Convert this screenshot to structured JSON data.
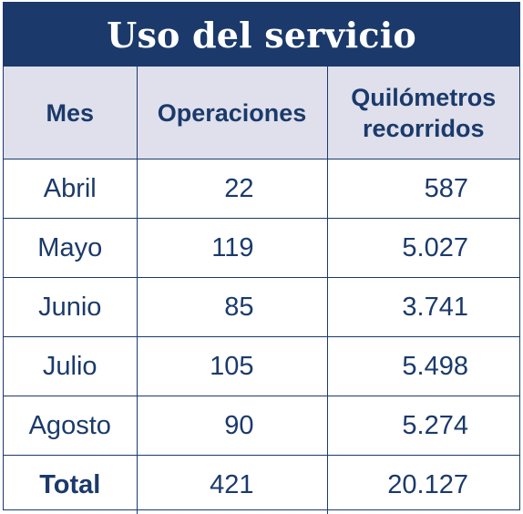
{
  "title": "Uso del servicio",
  "headers": {
    "month": "Mes",
    "operations": "Operaciones",
    "kilometers": "Quilómetros recorridos"
  },
  "rows": [
    {
      "month": "Abril",
      "operations": "22",
      "kilometers": "587"
    },
    {
      "month": "Mayo",
      "operations": "119",
      "kilometers": "5.027"
    },
    {
      "month": "Junio",
      "operations": "85",
      "kilometers": "3.741"
    },
    {
      "month": "Julio",
      "operations": "105",
      "kilometers": "5.498"
    },
    {
      "month": "Agosto",
      "operations": "90",
      "kilometers": "5.274"
    },
    {
      "month": "Total",
      "operations": "421",
      "kilometers": "20.127"
    }
  ],
  "colors": {
    "navy": "#1b3a6b",
    "header_bg": "#dfe0ec",
    "background": "#ffffff"
  }
}
